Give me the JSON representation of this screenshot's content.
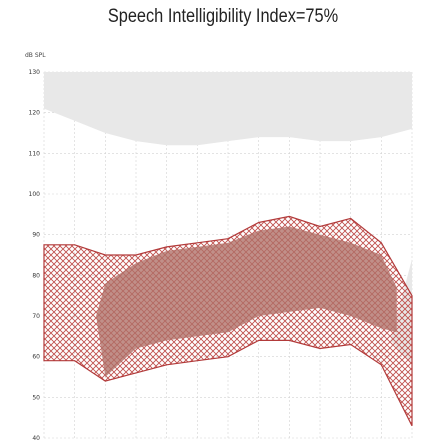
{
  "header": {
    "title": "Speech Intelligibility Index=75%"
  },
  "chart_data": {
    "type": "area",
    "title": "Speech Intelligibility Index=75%",
    "ylabel": "dB SPL",
    "ylim": [
      40,
      130
    ],
    "y_ticks": [
      "130",
      "120",
      "110",
      "100",
      "90",
      "80",
      "70",
      "60",
      "50",
      "40"
    ],
    "x_domain": [
      0,
      12
    ],
    "grid": true,
    "series": [
      {
        "kind": "upper-gray-region",
        "x": [
          0,
          1,
          2,
          3,
          4,
          5,
          6,
          7,
          8,
          9,
          10,
          11,
          12
        ],
        "top": [
          130,
          130,
          130,
          130,
          130,
          130,
          130,
          130,
          130,
          130,
          130,
          130,
          130
        ],
        "bottom": [
          121,
          118,
          115,
          113,
          112,
          112,
          113,
          114,
          114,
          113,
          113,
          114,
          116
        ]
      },
      {
        "kind": "red-hatched-range",
        "x": [
          0,
          1,
          2,
          3,
          4,
          5,
          6,
          7,
          8,
          9,
          10,
          11,
          12
        ],
        "top": [
          87.5,
          87.5,
          85,
          85,
          87,
          88,
          89,
          93,
          94.5,
          92,
          94,
          88,
          75
        ],
        "bottom": [
          59,
          59,
          54,
          56,
          58,
          59,
          60,
          64,
          64,
          62,
          63,
          58,
          43
        ]
      },
      {
        "kind": "shaded-core",
        "x": [
          1.7,
          2,
          3,
          4,
          5,
          6,
          7,
          8,
          9,
          10,
          11,
          11.5
        ],
        "top": [
          70,
          78,
          83,
          86,
          87,
          88,
          91,
          92,
          90,
          88,
          85,
          77
        ],
        "bottom": [
          70,
          55,
          62,
          64,
          65,
          66,
          70,
          71,
          72,
          70,
          67,
          66
        ]
      },
      {
        "kind": "lower-right-gray",
        "x": [
          11.3,
          12,
          12
        ],
        "y": [
          64,
          84,
          58
        ]
      }
    ]
  },
  "colors": {
    "outline": "#b23a3a",
    "hatch": "#c0504d",
    "core": "#b07068",
    "gray": "#e8e8e8",
    "grid": "#d2d2d2"
  }
}
